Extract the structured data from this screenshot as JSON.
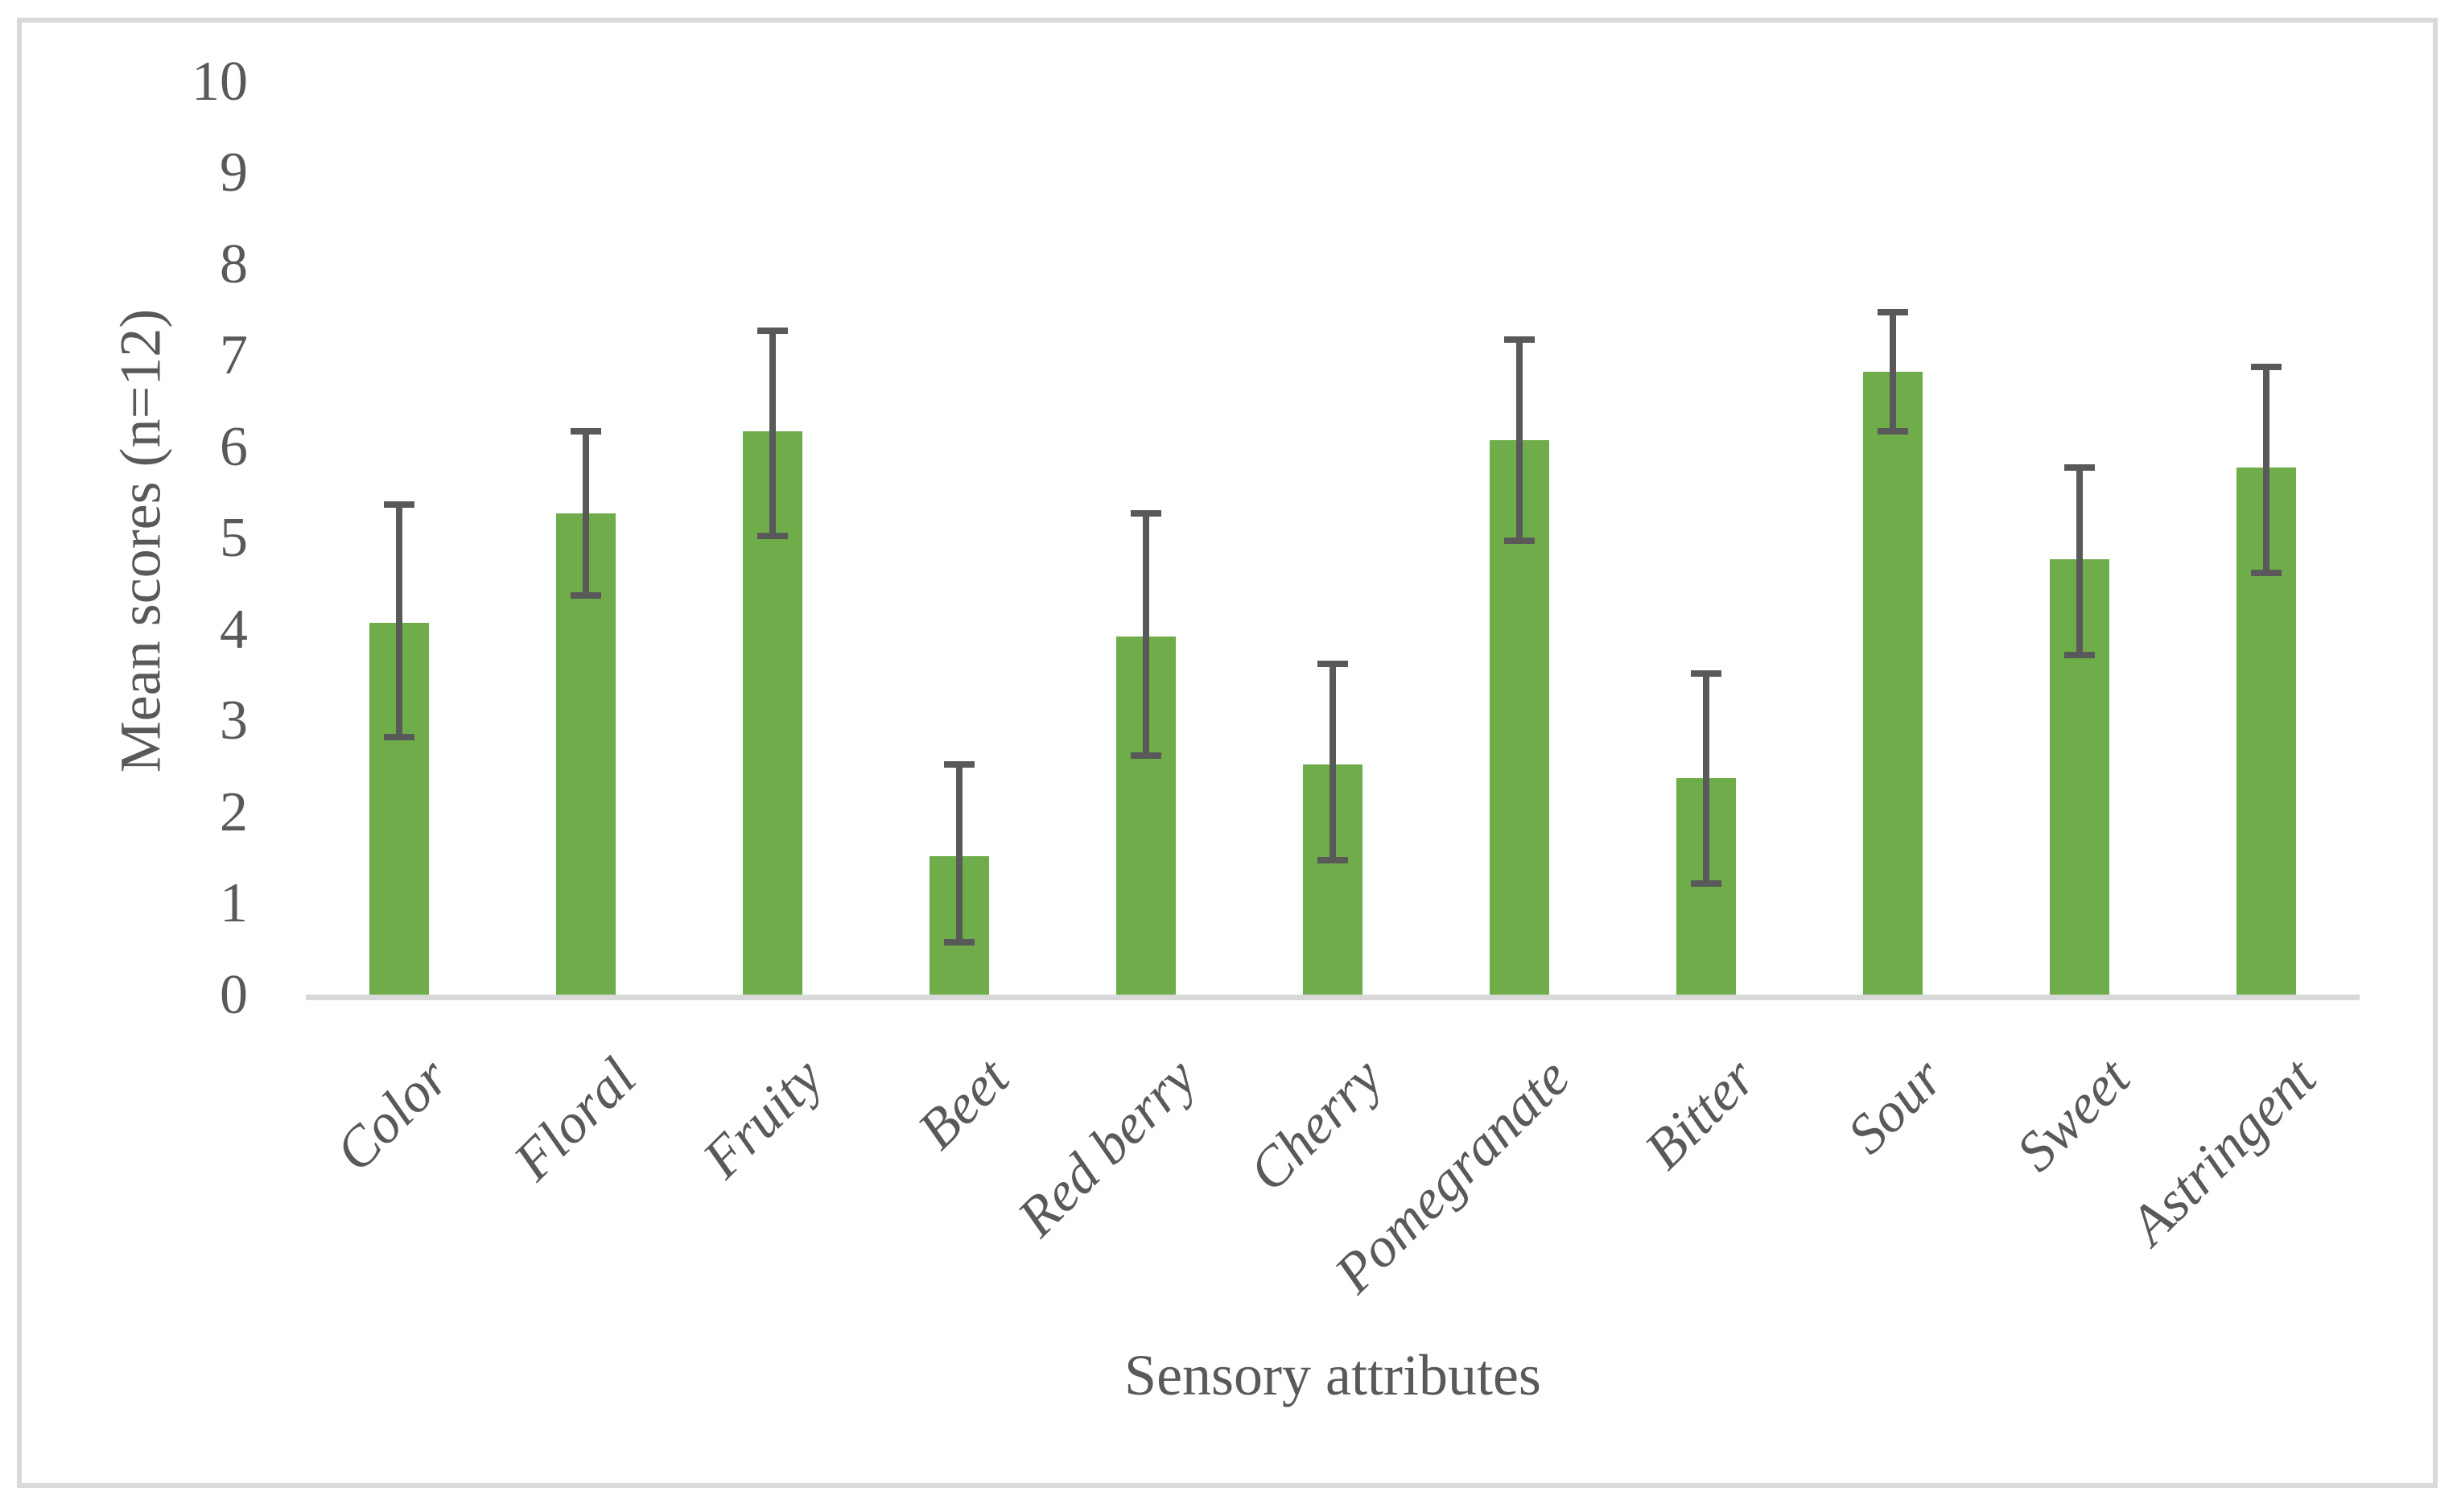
{
  "chart_data": {
    "type": "bar",
    "title": "",
    "xlabel": "Sensory attributes",
    "ylabel": "Mean scores (n=12)",
    "categories": [
      "Color",
      "Floral",
      "Fruity",
      "Beet",
      "Red berry",
      "Cherry",
      "Pomegranate",
      "Bitter",
      "Sour",
      "Sweet",
      "Astringent"
    ],
    "values": [
      4.1,
      5.3,
      6.2,
      1.55,
      3.95,
      2.55,
      6.1,
      2.4,
      6.85,
      4.8,
      5.8
    ],
    "error_high": [
      5.4,
      6.2,
      7.3,
      2.55,
      5.3,
      3.65,
      7.2,
      3.55,
      7.5,
      5.8,
      6.9
    ],
    "error_low": [
      2.85,
      4.4,
      5.05,
      0.6,
      2.65,
      1.5,
      5.0,
      1.25,
      6.2,
      3.75,
      4.65
    ],
    "ylim": [
      0,
      10
    ],
    "yticks": [
      0,
      1,
      2,
      3,
      4,
      5,
      6,
      7,
      8,
      9,
      10
    ],
    "grid": "off",
    "legend": "none",
    "bar_color": "#6fac4a",
    "error_bar_color": "#595959",
    "text_color": "#595959",
    "axis_line_color": "#d9d9d9",
    "border_color": "#d9d9d9",
    "background_color": "#ffffff"
  }
}
